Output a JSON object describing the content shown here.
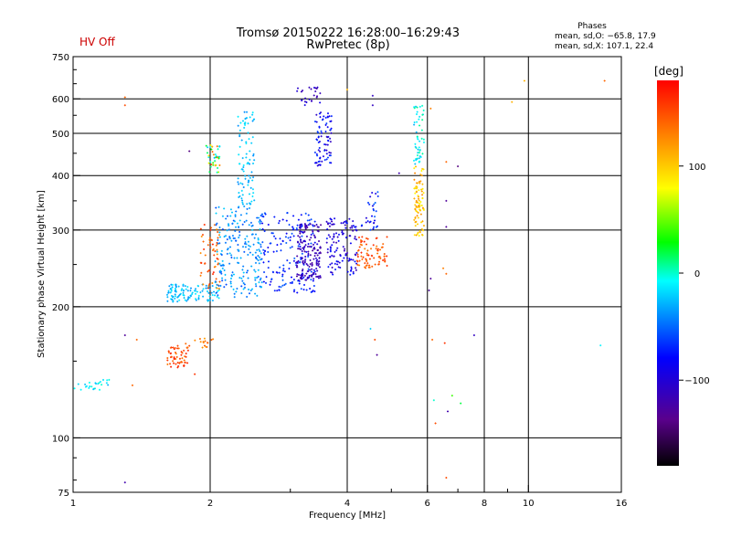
{
  "header": {
    "hv_status": "HV Off",
    "title": "Tromsø 20150222 16:28:00–16:29:43",
    "subtitle": "RwPretec (8p)",
    "stats_title": "Phases",
    "stats_o": "mean, sd,O: −65.8, 17.9",
    "stats_x": "mean, sd,X: 107.1, 22.4"
  },
  "colorbar": {
    "unit_label": "[deg]",
    "ticks": [
      {
        "value": 100,
        "label": "100"
      },
      {
        "value": 0,
        "label": "0"
      },
      {
        "value": -100,
        "label": "−100"
      }
    ],
    "range": [
      -180,
      180
    ],
    "colors": [
      "#000000",
      "#5a008c",
      "#0000ff",
      "#00ffff",
      "#00ff00",
      "#ffff00",
      "#ff8000",
      "#ff0000"
    ]
  },
  "chart_data": {
    "type": "scatter",
    "xlabel": "Frequency [MHz]",
    "ylabel": "Stationary phase Virtual Height [km]",
    "xscale": "log",
    "yscale": "log",
    "xlim": [
      1,
      16
    ],
    "ylim": [
      75,
      750
    ],
    "grid": true,
    "xticks": [
      {
        "value": 1,
        "label": "1"
      },
      {
        "value": 2,
        "label": "2"
      },
      {
        "value": 4,
        "label": "4"
      },
      {
        "value": 6,
        "label": "6"
      },
      {
        "value": 8,
        "label": "8"
      },
      {
        "value": 10,
        "label": "10"
      },
      {
        "value": 16,
        "label": "16"
      }
    ],
    "xminor": [
      3,
      5,
      7,
      9
    ],
    "yticks": [
      {
        "value": 75,
        "label": "75"
      },
      {
        "value": 100,
        "label": "100"
      },
      {
        "value": 200,
        "label": "200"
      },
      {
        "value": 300,
        "label": "300"
      },
      {
        "value": 400,
        "label": "400"
      },
      {
        "value": 500,
        "label": "500"
      },
      {
        "value": 600,
        "label": "600"
      },
      {
        "value": 750,
        "label": "750"
      }
    ],
    "yminor": [
      80,
      90,
      150,
      250,
      350,
      450,
      550,
      650,
      700
    ],
    "point_groups": [
      {
        "f_range": [
          1.6,
          2.1
        ],
        "h_range": [
          205,
          225
        ],
        "phase": [
          -40,
          -10
        ],
        "count": 110
      },
      {
        "f_range": [
          1.9,
          2.1
        ],
        "h_range": [
          220,
          310
        ],
        "phase": [
          120,
          170
        ],
        "count": 60
      },
      {
        "f_range": [
          1.95,
          2.1
        ],
        "h_range": [
          400,
          470
        ],
        "phase": [
          -30,
          150
        ],
        "count": 40
      },
      {
        "f_range": [
          2.05,
          2.6
        ],
        "h_range": [
          210,
          340
        ],
        "phase": [
          -60,
          -20
        ],
        "count": 220
      },
      {
        "f_range": [
          2.3,
          2.5
        ],
        "h_range": [
          340,
          560
        ],
        "phase": [
          -40,
          -10
        ],
        "count": 90
      },
      {
        "f_range": [
          2.6,
          3.4
        ],
        "h_range": [
          215,
          330
        ],
        "phase": [
          -90,
          -50
        ],
        "count": 170
      },
      {
        "f_range": [
          3.1,
          3.5
        ],
        "h_range": [
          230,
          310
        ],
        "phase": [
          -130,
          -100
        ],
        "count": 160
      },
      {
        "f_range": [
          3.4,
          3.7
        ],
        "h_range": [
          420,
          560
        ],
        "phase": [
          -110,
          -60
        ],
        "count": 80
      },
      {
        "f_range": [
          3.1,
          3.5
        ],
        "h_range": [
          580,
          640
        ],
        "phase": [
          -120,
          -90
        ],
        "count": 25
      },
      {
        "f_range": [
          3.6,
          4.2
        ],
        "h_range": [
          235,
          320
        ],
        "phase": [
          -120,
          -70
        ],
        "count": 120
      },
      {
        "f_range": [
          4.2,
          4.9
        ],
        "h_range": [
          245,
          290
        ],
        "phase": [
          130,
          170
        ],
        "count": 80
      },
      {
        "f_range": [
          4.3,
          4.7
        ],
        "h_range": [
          300,
          370
        ],
        "phase": [
          -100,
          -50
        ],
        "count": 30
      },
      {
        "f_range": [
          5.6,
          5.9
        ],
        "h_range": [
          290,
          420
        ],
        "phase": [
          80,
          130
        ],
        "count": 90
      },
      {
        "f_range": [
          5.6,
          5.9
        ],
        "h_range": [
          420,
          580
        ],
        "phase": [
          -30,
          10
        ],
        "count": 50
      },
      {
        "f_range": [
          1.6,
          1.8
        ],
        "h_range": [
          145,
          165
        ],
        "phase": [
          130,
          170
        ],
        "count": 60
      },
      {
        "f_range": [
          1.85,
          2.05
        ],
        "h_range": [
          160,
          172
        ],
        "phase": [
          110,
          150
        ],
        "count": 15
      },
      {
        "f_range": [
          1.0,
          1.2
        ],
        "h_range": [
          128,
          136
        ],
        "phase": [
          -30,
          0
        ],
        "count": 25
      }
    ],
    "scattered_points": [
      {
        "f": 1.3,
        "h": 605,
        "phase": 140
      },
      {
        "f": 1.3,
        "h": 580,
        "phase": 150
      },
      {
        "f": 1.3,
        "h": 172,
        "phase": -130
      },
      {
        "f": 1.38,
        "h": 168,
        "phase": 140
      },
      {
        "f": 1.3,
        "h": 79,
        "phase": -120
      },
      {
        "f": 1.35,
        "h": 132,
        "phase": 140
      },
      {
        "f": 1.8,
        "h": 455,
        "phase": -140
      },
      {
        "f": 1.85,
        "h": 140,
        "phase": 160
      },
      {
        "f": 4.0,
        "h": 630,
        "phase": 110
      },
      {
        "f": 4.55,
        "h": 610,
        "phase": -110
      },
      {
        "f": 4.55,
        "h": 580,
        "phase": -110
      },
      {
        "f": 4.5,
        "h": 178,
        "phase": -20
      },
      {
        "f": 4.6,
        "h": 168,
        "phase": 150
      },
      {
        "f": 4.65,
        "h": 155,
        "phase": -130
      },
      {
        "f": 5.2,
        "h": 405,
        "phase": -120
      },
      {
        "f": 6.1,
        "h": 570,
        "phase": 130
      },
      {
        "f": 6.1,
        "h": 232,
        "phase": -130
      },
      {
        "f": 6.05,
        "h": 218,
        "phase": -130
      },
      {
        "f": 6.15,
        "h": 168,
        "phase": 140
      },
      {
        "f": 6.2,
        "h": 122,
        "phase": 0
      },
      {
        "f": 6.25,
        "h": 108,
        "phase": 150
      },
      {
        "f": 6.6,
        "h": 430,
        "phase": 140
      },
      {
        "f": 6.6,
        "h": 350,
        "phase": -130
      },
      {
        "f": 6.6,
        "h": 305,
        "phase": -130
      },
      {
        "f": 6.5,
        "h": 245,
        "phase": 130
      },
      {
        "f": 6.6,
        "h": 238,
        "phase": 140
      },
      {
        "f": 6.55,
        "h": 165,
        "phase": 160
      },
      {
        "f": 6.65,
        "h": 115,
        "phase": -120
      },
      {
        "f": 6.8,
        "h": 125,
        "phase": 40
      },
      {
        "f": 6.6,
        "h": 81,
        "phase": 150
      },
      {
        "f": 7.0,
        "h": 420,
        "phase": -140
      },
      {
        "f": 7.1,
        "h": 120,
        "phase": 20
      },
      {
        "f": 7.6,
        "h": 172,
        "phase": -110
      },
      {
        "f": 9.2,
        "h": 590,
        "phase": 110
      },
      {
        "f": 9.8,
        "h": 660,
        "phase": 110
      },
      {
        "f": 14.7,
        "h": 660,
        "phase": 140
      },
      {
        "f": 14.4,
        "h": 163,
        "phase": -10
      }
    ]
  }
}
